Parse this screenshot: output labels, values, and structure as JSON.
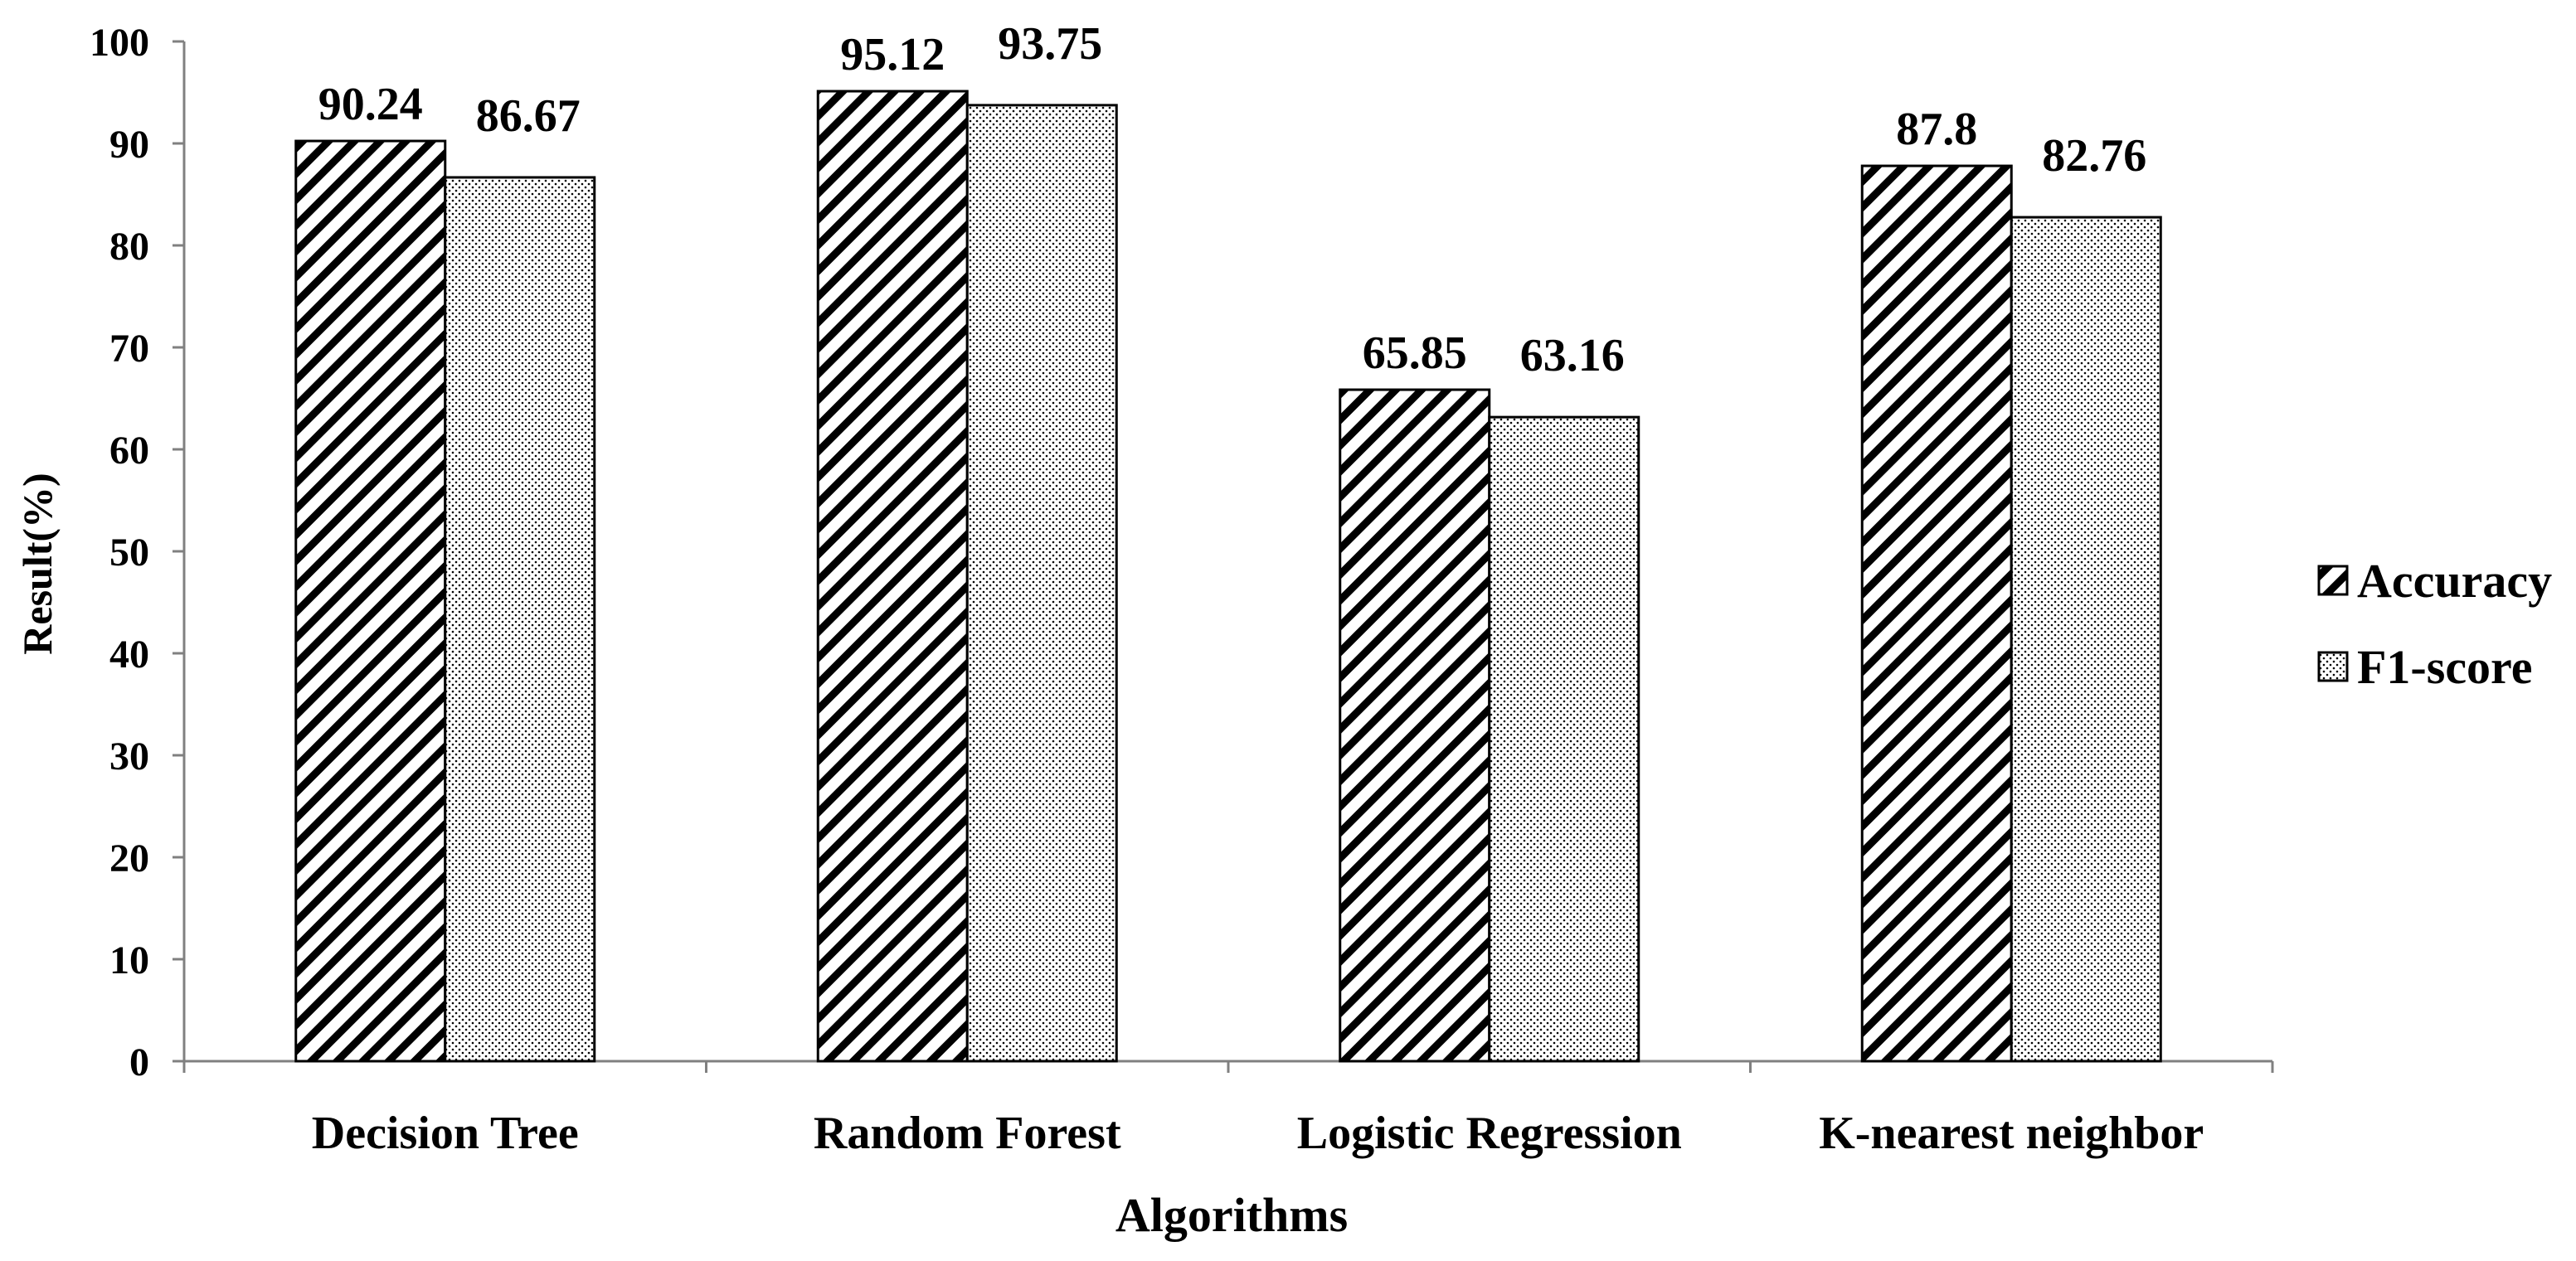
{
  "chart_data": {
    "type": "bar",
    "title": "",
    "xlabel": "Algorithms",
    "ylabel": "Result(%)",
    "ylim": [
      0,
      100
    ],
    "yticks": [
      0,
      10,
      20,
      30,
      40,
      50,
      60,
      70,
      80,
      90,
      100
    ],
    "categories": [
      "Decision Tree",
      "Random Forest",
      "Logistic Regression",
      "K-nearest neighbor"
    ],
    "series": [
      {
        "name": "Accuracy",
        "values": [
          90.24,
          95.12,
          65.85,
          87.8
        ],
        "labels": [
          "90.24",
          "95.12",
          "65.85",
          "87.8"
        ],
        "pattern": "diagonal-hatch"
      },
      {
        "name": "F1-score",
        "values": [
          86.67,
          93.75,
          63.16,
          82.76
        ],
        "labels": [
          "86.67",
          "93.75",
          "63.16",
          "82.76"
        ],
        "pattern": "dotted"
      }
    ],
    "grid": false,
    "legend_position": "right",
    "colors": {
      "bar_border": "#000000",
      "bar_fill": "#ffffff",
      "axis": "#808080",
      "text": "#000000"
    }
  }
}
